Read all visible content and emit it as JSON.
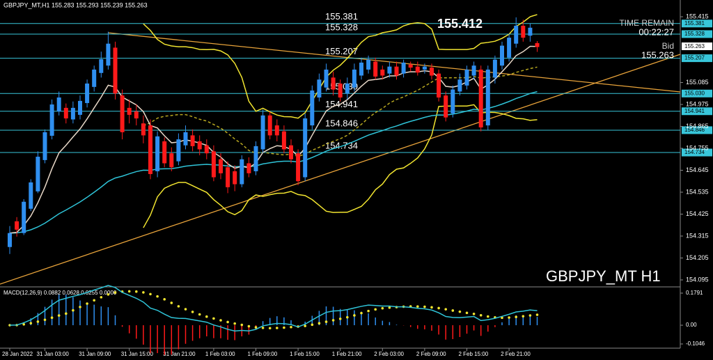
{
  "header": "GBPJPY_MT,H1  155.283 155.293 155.239 155.263",
  "watermark": "GBPJPY_MT H1",
  "high_marker": "155.412",
  "time_remain": {
    "label": "TIME REMAIN",
    "value": "00:22:27"
  },
  "bid": {
    "label": "Bid",
    "value": "155.263"
  },
  "chart_data": [
    {
      "type": "candlestick",
      "categories": [
        "28 Jan 2022",
        null,
        null,
        null,
        null,
        "31 Jan 03:00",
        null,
        null,
        null,
        null,
        null,
        "31 Jan 09:00",
        null,
        null,
        null,
        null,
        null,
        "31 Jan 15:00",
        null,
        null,
        null,
        null,
        null,
        "31 Jan 21:00",
        null,
        null,
        null,
        null,
        null,
        "1 Feb 03:00",
        null,
        null,
        null,
        null,
        null,
        "1 Feb 09:00",
        null,
        null,
        null,
        null,
        null,
        "1 Feb 15:00",
        null,
        null,
        null,
        null,
        null,
        "1 Feb 21:00",
        null,
        null,
        null,
        null,
        null,
        "2 Feb 03:00",
        null,
        null,
        null,
        null,
        null,
        "2 Feb 09:00",
        null,
        null,
        null,
        null,
        null,
        "2 Feb 15:00",
        null,
        null,
        null,
        null,
        null,
        "2 Feb 21:00",
        null,
        null,
        null,
        null
      ],
      "ohlc": [
        [
          154.26,
          154.365,
          154.225,
          154.33
        ],
        [
          154.389,
          154.41,
          154.312,
          154.347
        ],
        [
          154.33,
          154.5,
          154.32,
          154.487
        ],
        [
          154.452,
          154.6,
          154.44,
          154.584
        ],
        [
          154.539,
          154.74,
          154.53,
          154.713
        ],
        [
          154.696,
          154.85,
          154.68,
          154.836
        ],
        [
          154.818,
          155.0,
          154.8,
          154.975
        ],
        [
          154.94,
          155.04,
          154.92,
          155.01
        ],
        [
          154.958,
          154.98,
          154.88,
          154.905
        ],
        [
          154.9,
          154.99,
          154.88,
          154.958
        ],
        [
          154.923,
          155.02,
          154.9,
          154.993
        ],
        [
          154.982,
          155.1,
          154.96,
          155.08
        ],
        [
          155.063,
          155.17,
          155.04,
          155.15
        ],
        [
          155.133,
          155.24,
          155.11,
          155.202
        ],
        [
          155.17,
          155.34,
          155.15,
          155.28
        ],
        [
          155.26,
          155.29,
          155.0,
          155.03
        ],
        [
          155.02,
          155.05,
          154.8,
          154.836
        ],
        [
          154.958,
          155.0,
          154.88,
          154.923
        ],
        [
          154.94,
          154.975,
          154.87,
          154.905
        ],
        [
          154.88,
          154.92,
          154.78,
          154.82
        ],
        [
          154.87,
          154.9,
          154.6,
          154.626
        ],
        [
          154.64,
          154.84,
          154.61,
          154.815
        ],
        [
          154.79,
          154.81,
          154.66,
          154.68
        ],
        [
          154.73,
          154.76,
          154.64,
          154.66
        ],
        [
          154.69,
          154.83,
          154.67,
          154.8
        ],
        [
          154.77,
          154.87,
          154.75,
          154.836
        ],
        [
          154.82,
          154.85,
          154.74,
          154.766
        ],
        [
          154.79,
          154.82,
          154.72,
          154.75
        ],
        [
          154.77,
          154.8,
          154.7,
          154.73
        ],
        [
          154.74,
          154.77,
          154.59,
          154.61
        ],
        [
          154.7,
          154.73,
          154.6,
          154.63
        ],
        [
          154.66,
          154.69,
          154.53,
          154.56
        ],
        [
          154.64,
          154.67,
          154.54,
          154.575
        ],
        [
          154.575,
          154.72,
          154.56,
          154.7
        ],
        [
          154.68,
          154.71,
          154.61,
          154.63
        ],
        [
          154.64,
          154.79,
          154.62,
          154.766
        ],
        [
          154.75,
          154.95,
          154.73,
          154.92
        ],
        [
          154.92,
          154.94,
          154.8,
          154.82
        ],
        [
          154.87,
          154.9,
          154.79,
          154.82
        ],
        [
          154.84,
          154.87,
          154.73,
          154.75
        ],
        [
          154.77,
          154.8,
          154.68,
          154.7
        ],
        [
          154.73,
          154.75,
          154.57,
          154.59
        ],
        [
          154.61,
          154.93,
          154.59,
          154.905
        ],
        [
          154.87,
          155.07,
          154.85,
          155.045
        ],
        [
          155.01,
          155.13,
          154.99,
          155.1
        ],
        [
          155.06,
          155.18,
          155.04,
          155.15
        ],
        [
          155.11,
          155.14,
          155.02,
          155.05
        ],
        [
          155.08,
          155.1,
          154.99,
          155.01
        ],
        [
          155.03,
          155.11,
          155.0,
          155.08
        ],
        [
          155.06,
          155.18,
          155.04,
          155.15
        ],
        [
          155.12,
          155.21,
          155.1,
          155.185
        ],
        [
          155.15,
          155.22,
          155.13,
          155.2
        ],
        [
          155.19,
          155.21,
          155.1,
          155.115
        ],
        [
          155.15,
          155.17,
          155.1,
          155.12
        ],
        [
          155.13,
          155.19,
          155.11,
          155.165
        ],
        [
          155.165,
          155.19,
          155.1,
          155.12
        ],
        [
          155.13,
          155.2,
          155.11,
          155.185
        ],
        [
          155.175,
          155.19,
          155.14,
          155.16
        ],
        [
          155.165,
          155.19,
          155.12,
          155.135
        ],
        [
          155.15,
          155.18,
          155.13,
          155.165
        ],
        [
          155.16,
          155.18,
          155.1,
          155.12
        ],
        [
          155.13,
          155.15,
          154.99,
          155.01
        ],
        [
          155.02,
          155.04,
          154.89,
          154.91
        ],
        [
          154.93,
          155.07,
          154.91,
          155.05
        ],
        [
          155.04,
          155.13,
          155.02,
          155.1
        ],
        [
          155.07,
          155.17,
          155.05,
          155.15
        ],
        [
          155.12,
          155.19,
          155.1,
          155.17
        ],
        [
          155.15,
          155.17,
          154.84,
          154.86
        ],
        [
          154.87,
          155.17,
          154.846,
          155.15
        ],
        [
          155.11,
          155.22,
          155.08,
          155.2
        ],
        [
          155.17,
          155.29,
          155.15,
          155.27
        ],
        [
          155.21,
          155.33,
          155.19,
          155.31
        ],
        [
          155.28,
          155.412,
          155.26,
          155.37
        ],
        [
          155.37,
          155.4,
          155.29,
          155.31
        ],
        [
          155.32,
          155.381,
          155.29,
          155.36
        ],
        [
          155.283,
          155.293,
          155.239,
          155.263
        ]
      ],
      "colors": {
        "up": "#2f8ff0",
        "down": "#ff1a1a"
      },
      "ylim": [
        154.067,
        155.499
      ],
      "yticks": [
        155.415,
        155.085,
        154.975,
        154.865,
        154.755,
        154.645,
        154.535,
        154.425,
        154.315,
        154.205,
        154.095
      ],
      "levels": [
        155.381,
        155.328,
        155.207,
        {
          "value": 155.03,
          "label": "155.030"
        },
        154.941,
        154.846,
        154.734
      ],
      "level_color": "#38c6da"
    },
    {
      "type": "macd",
      "label": "MACD(12,26,9) 0.0882 0.0628 0.0255 0.0000",
      "ylim": [
        -0.128,
        0.21
      ],
      "yticks": [
        0.1791,
        {
          "value": 0,
          "label": "0.00"
        },
        -0.1046
      ]
    }
  ]
}
